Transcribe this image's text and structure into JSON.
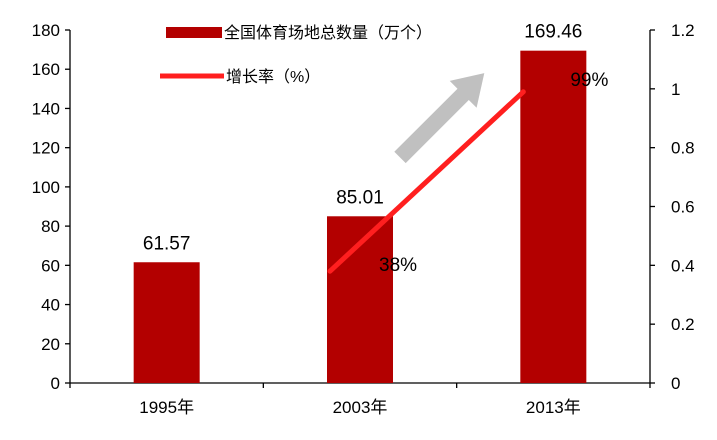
{
  "chart_data": {
    "type": "bar",
    "categories": [
      "1995年",
      "2003年",
      "2013年"
    ],
    "series": [
      {
        "name": "全国体育场地总数量（万个）",
        "kind": "bar",
        "axis": "left",
        "color": "#B30000",
        "values": [
          61.57,
          85.01,
          169.46
        ],
        "labels": [
          "61.57",
          "85.01",
          "169.46"
        ]
      },
      {
        "name": "增长率（%）",
        "kind": "line",
        "axis": "right",
        "color": "#FF1F1F",
        "values": [
          null,
          0.38,
          0.99
        ],
        "labels": [
          "",
          "38%",
          "99%"
        ]
      }
    ],
    "y_left": {
      "min": 0,
      "max": 180,
      "ticks": [
        "0",
        "20",
        "40",
        "60",
        "80",
        "100",
        "120",
        "140",
        "160",
        "180"
      ]
    },
    "y_right": {
      "min": 0,
      "max": 1.2,
      "ticks": [
        "0",
        "0.2",
        "0.4",
        "0.6",
        "0.8",
        "1",
        "1.2"
      ]
    },
    "legend": {
      "position": "top"
    },
    "grid": false,
    "trend_arrow_color": "#C0C0C0"
  }
}
